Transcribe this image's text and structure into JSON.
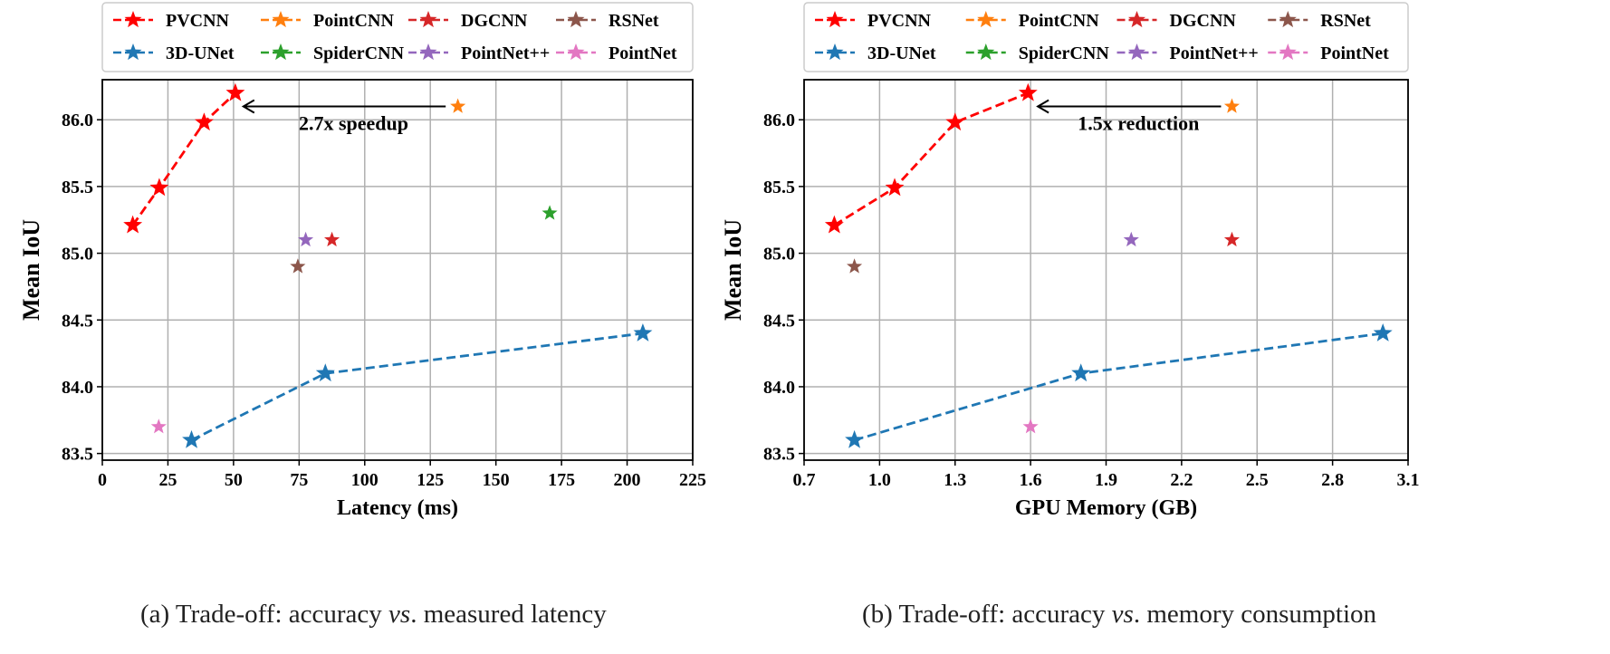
{
  "colors": {
    "PVCNN": "#ff0000",
    "PointCNN": "#ff7f0e",
    "DGCNN": "#d62728",
    "RSNet": "#8c564b",
    "3D-UNet": "#1f77b4",
    "SpiderCNN": "#2ca02c",
    "PointNet++": "#9467bd",
    "PointNet": "#e377c2"
  },
  "legend": [
    "PVCNN",
    "PointCNN",
    "DGCNN",
    "RSNet",
    "3D-UNet",
    "SpiderCNN",
    "PointNet++",
    "PointNet"
  ],
  "chart_data": [
    {
      "type": "scatter",
      "xlabel": "Latency (ms)",
      "ylabel": "Mean IoU",
      "xlim": [
        0,
        225
      ],
      "ylim": [
        83.45,
        86.3
      ],
      "xticks": [
        "0",
        "25",
        "50",
        "75",
        "100",
        "125",
        "150",
        "175",
        "200",
        "225"
      ],
      "yticks": [
        "83.5",
        "84.0",
        "84.5",
        "85.0",
        "85.5",
        "86.0"
      ],
      "grid": true,
      "legend_placement": "top",
      "annotation": {
        "text": "2.7x speedup",
        "from": [
          135,
          86.1
        ],
        "to": [
          51,
          86.1
        ]
      },
      "series": [
        {
          "name": "PVCNN",
          "line": true,
          "points": [
            [
              11.6,
              85.21
            ],
            [
              21.7,
              85.49
            ],
            [
              38.8,
              85.98
            ],
            [
              50.7,
              86.2
            ]
          ]
        },
        {
          "name": "3D-UNet",
          "line": true,
          "points": [
            [
              34,
              83.6
            ],
            [
              85,
              84.1
            ],
            [
              206,
              84.4
            ]
          ]
        },
        {
          "name": "PointCNN",
          "points": [
            [
              135.5,
              86.1
            ]
          ]
        },
        {
          "name": "DGCNN",
          "points": [
            [
              87.5,
              85.1
            ]
          ]
        },
        {
          "name": "RSNet",
          "points": [
            [
              74.5,
              84.9
            ]
          ]
        },
        {
          "name": "SpiderCNN",
          "points": [
            [
              170.5,
              85.3
            ]
          ]
        },
        {
          "name": "PointNet++",
          "points": [
            [
              77.5,
              85.1
            ]
          ]
        },
        {
          "name": "PointNet",
          "points": [
            [
              21.5,
              83.7
            ]
          ]
        }
      ],
      "caption": {
        "prefix": "(a) Trade-off: accuracy ",
        "italic": "vs",
        "suffix": ". measured latency"
      }
    },
    {
      "type": "scatter",
      "xlabel": "GPU Memory (GB)",
      "ylabel": "Mean IoU",
      "xlim": [
        0.7,
        3.1
      ],
      "ylim": [
        83.45,
        86.3
      ],
      "xticks": [
        "0.7",
        "1.0",
        "1.3",
        "1.6",
        "1.9",
        "2.2",
        "2.5",
        "2.8",
        "3.1"
      ],
      "yticks": [
        "83.5",
        "84.0",
        "84.5",
        "85.0",
        "85.5",
        "86.0"
      ],
      "grid": true,
      "legend_placement": "top",
      "annotation": {
        "text": "1.5x reduction",
        "from": [
          2.4,
          86.1
        ],
        "to": [
          1.6,
          86.1
        ]
      },
      "series": [
        {
          "name": "PVCNN",
          "line": true,
          "points": [
            [
              0.82,
              85.21
            ],
            [
              1.06,
              85.49
            ],
            [
              1.3,
              85.98
            ],
            [
              1.59,
              86.2
            ]
          ]
        },
        {
          "name": "3D-UNet",
          "line": true,
          "points": [
            [
              0.9,
              83.6
            ],
            [
              1.8,
              84.1
            ],
            [
              3.0,
              84.4
            ]
          ]
        },
        {
          "name": "PointCNN",
          "points": [
            [
              2.4,
              86.1
            ]
          ]
        },
        {
          "name": "DGCNN",
          "points": [
            [
              2.4,
              85.1
            ]
          ]
        },
        {
          "name": "RSNet",
          "points": [
            [
              0.9,
              84.9
            ]
          ]
        },
        {
          "name": "PointNet++",
          "points": [
            [
              2.0,
              85.1
            ]
          ]
        },
        {
          "name": "PointNet",
          "points": [
            [
              1.6,
              83.7
            ]
          ]
        }
      ],
      "caption": {
        "prefix": "(b) Trade-off: accuracy ",
        "italic": "vs",
        "suffix": ". memory consumption"
      }
    }
  ]
}
